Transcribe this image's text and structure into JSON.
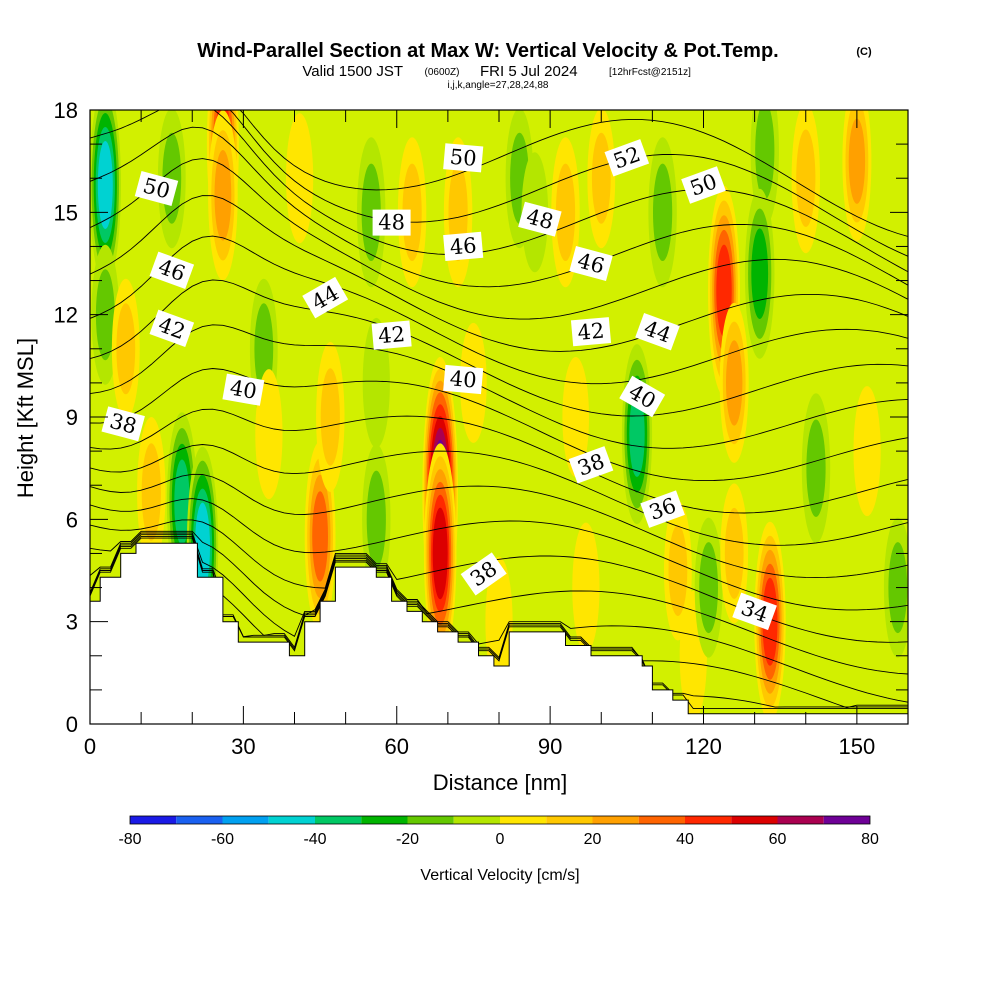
{
  "header": {
    "title": "Wind-Parallel Section at Max W: Vertical Velocity & Pot.Temp.",
    "copyright": "(C)",
    "subtitle_prefix": "Valid 1500 JST",
    "subtitle_utc": "(0600Z)",
    "subtitle_main": "FRI 5 Jul 2024",
    "subtitle_fcst": "[12hrFcst@2151z]",
    "indices": "i,j,k,angle=27,28,24,88"
  },
  "chart_data": {
    "type": "heatmap",
    "title": "Wind-Parallel Section at Max W: Vertical Velocity & Pot.Temp.",
    "xlabel": "Distance [nm]",
    "ylabel": "Height [Kft MSL]",
    "xlim": [
      0,
      160
    ],
    "ylim": [
      0,
      18
    ],
    "x_ticks": [
      0,
      30,
      60,
      90,
      120,
      150
    ],
    "x_tick_labels": [
      "0",
      "30",
      "60",
      "90",
      "120",
      "150"
    ],
    "y_ticks": [
      0,
      3,
      6,
      9,
      12,
      15,
      18
    ],
    "y_tick_labels": [
      "0",
      "3",
      "6",
      "9",
      "12",
      "15",
      "18"
    ],
    "grid": false,
    "colorbar": {
      "title": "Vertical Velocity [cm/s]",
      "levels": [
        -80,
        -70,
        -60,
        -50,
        -40,
        -30,
        -20,
        -10,
        0,
        10,
        20,
        30,
        40,
        50,
        60,
        70,
        80
      ],
      "tick_values": [
        -80,
        -60,
        -40,
        -20,
        0,
        20,
        40,
        60,
        80
      ],
      "tick_labels": [
        "-80",
        "-60",
        "-40",
        "-20",
        "0",
        "20",
        "40",
        "60",
        "80"
      ],
      "colors": [
        "#1a1ae6",
        "#1a60f0",
        "#00a0f0",
        "#00d2d2",
        "#00c864",
        "#00b400",
        "#64c800",
        "#b4e600",
        "#ffe600",
        "#ffc800",
        "#ffa000",
        "#ff6400",
        "#ff2800",
        "#dc0000",
        "#aa0050",
        "#6e0096"
      ]
    },
    "w_features": [
      {
        "x": 3,
        "y": 15.8,
        "w": -45
      },
      {
        "x": 3,
        "y": 12,
        "w": -15
      },
      {
        "x": 7,
        "y": 11,
        "w": 15
      },
      {
        "x": 12,
        "y": 6.8,
        "w": 20
      },
      {
        "x": 18,
        "y": 6.5,
        "w": -35
      },
      {
        "x": 22,
        "y": 5.2,
        "w": -45
      },
      {
        "x": 16,
        "y": 16,
        "w": -15
      },
      {
        "x": 26,
        "y": 17,
        "w": 50
      },
      {
        "x": 26,
        "y": 15.5,
        "w": 30
      },
      {
        "x": 34,
        "y": 11,
        "w": -15
      },
      {
        "x": 35,
        "y": 8.5,
        "w": 10
      },
      {
        "x": 45,
        "y": 5.5,
        "w": 40
      },
      {
        "x": 47,
        "y": 9,
        "w": 20
      },
      {
        "x": 41,
        "y": 16,
        "w": 10
      },
      {
        "x": 55,
        "y": 15,
        "w": -20
      },
      {
        "x": 56,
        "y": 10,
        "w": -10
      },
      {
        "x": 56,
        "y": 6,
        "w": -20
      },
      {
        "x": 63,
        "y": 15,
        "w": 20
      },
      {
        "x": 68.5,
        "y": 6.8,
        "w": 80
      },
      {
        "x": 68.5,
        "y": 5,
        "w": 55
      },
      {
        "x": 72,
        "y": 15,
        "w": 20
      },
      {
        "x": 75,
        "y": 10,
        "w": 5
      },
      {
        "x": 80,
        "y": 3,
        "w": 10
      },
      {
        "x": 84,
        "y": 16,
        "w": -15
      },
      {
        "x": 87,
        "y": 15,
        "w": -5
      },
      {
        "x": 93,
        "y": 15,
        "w": 20
      },
      {
        "x": 95,
        "y": 9,
        "w": 5
      },
      {
        "x": 97,
        "y": 4,
        "w": 10
      },
      {
        "x": 107,
        "y": 8.5,
        "w": -35
      },
      {
        "x": 100,
        "y": 16,
        "w": 15
      },
      {
        "x": 112,
        "y": 15,
        "w": -20
      },
      {
        "x": 115,
        "y": 4.5,
        "w": 15
      },
      {
        "x": 118,
        "y": 2,
        "w": 10
      },
      {
        "x": 121,
        "y": 4,
        "w": -15
      },
      {
        "x": 124,
        "y": 12.7,
        "w": 50
      },
      {
        "x": 126,
        "y": 10,
        "w": 25
      },
      {
        "x": 126,
        "y": 5,
        "w": 15
      },
      {
        "x": 132,
        "y": 16.8,
        "w": -20
      },
      {
        "x": 131,
        "y": 13.2,
        "w": -30
      },
      {
        "x": 133,
        "y": 3,
        "w": 45
      },
      {
        "x": 142,
        "y": 7.5,
        "w": -20
      },
      {
        "x": 140,
        "y": 16,
        "w": 20
      },
      {
        "x": 150,
        "y": 16.5,
        "w": 25
      },
      {
        "x": 152,
        "y": 8,
        "w": 10
      },
      {
        "x": 158,
        "y": 4,
        "w": -15
      }
    ],
    "terrain": [
      [
        0,
        3.6
      ],
      [
        2,
        3.6
      ],
      [
        2,
        4.3
      ],
      [
        6,
        4.3
      ],
      [
        6,
        5
      ],
      [
        9,
        5
      ],
      [
        9,
        5.3
      ],
      [
        21,
        5.3
      ],
      [
        21,
        4.3
      ],
      [
        26,
        4.3
      ],
      [
        26,
        3
      ],
      [
        29,
        3
      ],
      [
        29,
        2.4
      ],
      [
        39,
        2.4
      ],
      [
        39,
        2
      ],
      [
        42,
        2
      ],
      [
        42,
        3
      ],
      [
        45,
        3
      ],
      [
        45,
        3.6
      ],
      [
        48,
        3.6
      ],
      [
        48,
        4.6
      ],
      [
        56,
        4.6
      ],
      [
        56,
        4.3
      ],
      [
        59,
        4.3
      ],
      [
        59,
        3.6
      ],
      [
        62,
        3.6
      ],
      [
        62,
        3.3
      ],
      [
        65,
        3.3
      ],
      [
        65,
        3
      ],
      [
        68,
        3
      ],
      [
        68,
        2.7
      ],
      [
        72,
        2.7
      ],
      [
        72,
        2.4
      ],
      [
        76,
        2.4
      ],
      [
        76,
        2
      ],
      [
        79,
        2
      ],
      [
        79,
        1.7
      ],
      [
        82,
        1.7
      ],
      [
        82,
        2.7
      ],
      [
        93,
        2.7
      ],
      [
        93,
        2.3
      ],
      [
        98,
        2.3
      ],
      [
        98,
        2
      ],
      [
        108,
        2
      ],
      [
        108,
        1.7
      ],
      [
        110,
        1.7
      ],
      [
        110,
        1
      ],
      [
        114,
        1
      ],
      [
        114,
        0.7
      ],
      [
        117,
        0.7
      ],
      [
        117,
        0.3
      ],
      [
        160,
        0.3
      ]
    ],
    "theta_levels": [
      34,
      35,
      36,
      37,
      38,
      39,
      40,
      41,
      42,
      43,
      44,
      45,
      46,
      47,
      48,
      49,
      50,
      51,
      52,
      53
    ],
    "theta_labels": [
      {
        "text": "50",
        "x": 13,
        "y": 15.7,
        "angle": 15
      },
      {
        "text": "46",
        "x": 16,
        "y": 13.3,
        "angle": 20
      },
      {
        "text": "42",
        "x": 16,
        "y": 11.6,
        "angle": 20
      },
      {
        "text": "40",
        "x": 30,
        "y": 9.8,
        "angle": 10
      },
      {
        "text": "38",
        "x": 6.5,
        "y": 8.8,
        "angle": 15
      },
      {
        "text": "48",
        "x": 59,
        "y": 14.7,
        "angle": 0
      },
      {
        "text": "44",
        "x": 46,
        "y": 12.5,
        "angle": -30
      },
      {
        "text": "42",
        "x": 59,
        "y": 11.4,
        "angle": -5
      },
      {
        "text": "50",
        "x": 73,
        "y": 16.6,
        "angle": 5
      },
      {
        "text": "46",
        "x": 73,
        "y": 14,
        "angle": -5
      },
      {
        "text": "40",
        "x": 73,
        "y": 10.1,
        "angle": 5
      },
      {
        "text": "38",
        "x": 77,
        "y": 4.4,
        "angle": -35
      },
      {
        "text": "48",
        "x": 88,
        "y": 14.8,
        "angle": 15
      },
      {
        "text": "52",
        "x": 105,
        "y": 16.6,
        "angle": -20
      },
      {
        "text": "46",
        "x": 98,
        "y": 13.5,
        "angle": 15
      },
      {
        "text": "42",
        "x": 98,
        "y": 11.5,
        "angle": -5
      },
      {
        "text": "44",
        "x": 111,
        "y": 11.5,
        "angle": 20
      },
      {
        "text": "40",
        "x": 108,
        "y": 9.6,
        "angle": 30
      },
      {
        "text": "38",
        "x": 98,
        "y": 7.6,
        "angle": -20
      },
      {
        "text": "36",
        "x": 112,
        "y": 6.3,
        "angle": -20
      },
      {
        "text": "50",
        "x": 120,
        "y": 15.8,
        "angle": -20
      },
      {
        "text": "34",
        "x": 130,
        "y": 3.3,
        "angle": 20
      }
    ]
  }
}
